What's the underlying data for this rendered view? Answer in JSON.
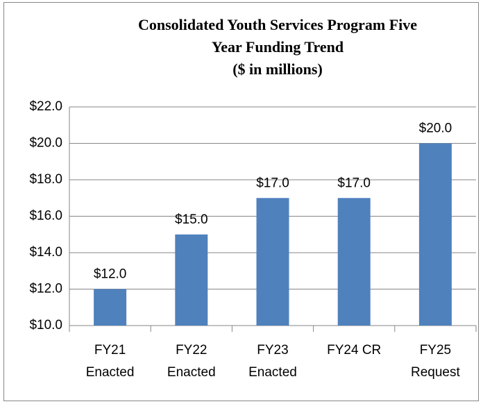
{
  "chart_data": {
    "type": "bar",
    "title": [
      "Consolidated Youth Services Program Five",
      "Year Funding Trend"
    ],
    "subtitle": "($ in millions)",
    "categories": [
      [
        "FY21",
        "Enacted"
      ],
      [
        "FY22",
        "Enacted"
      ],
      [
        "FY23",
        "Enacted"
      ],
      [
        "FY24 CR"
      ],
      [
        "FY25",
        "Request"
      ]
    ],
    "values": [
      12,
      15,
      17,
      17,
      20
    ],
    "value_labels": [
      "$12.0",
      "$15.0",
      "$17.0",
      "$17.0",
      "$20.0"
    ],
    "color": "#4f81bd",
    "ylim": [
      10,
      22
    ],
    "yticks": [
      {
        "value": 10,
        "label": "$10.0"
      },
      {
        "value": 12,
        "label": "$12.0"
      },
      {
        "value": 14,
        "label": "$14.0"
      },
      {
        "value": 16,
        "label": "$16.0"
      },
      {
        "value": 18,
        "label": "$18.0"
      },
      {
        "value": 20,
        "label": "$20.0"
      },
      {
        "value": 22,
        "label": "$22.0"
      }
    ],
    "grid": true
  }
}
